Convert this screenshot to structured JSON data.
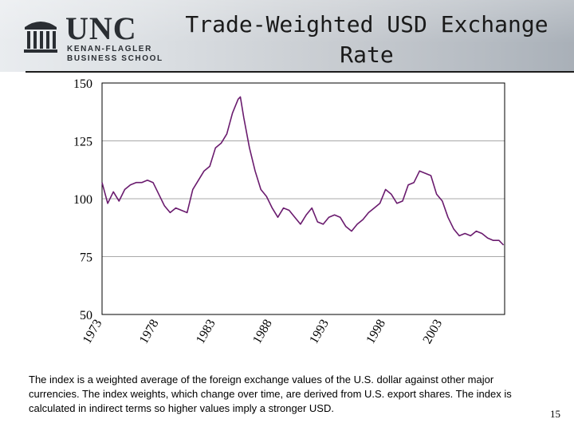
{
  "header": {
    "title": "Trade-Weighted USD Exchange Rate",
    "logo": {
      "wordmark": "UNC",
      "line1": "KENAN-FLAGLER",
      "line2": "BUSINESS SCHOOL",
      "icon": "old-well-icon"
    }
  },
  "chart_data": {
    "type": "line",
    "title": "",
    "xlabel": "",
    "ylabel": "",
    "ylim": [
      50,
      150
    ],
    "xlim": [
      1973,
      2008.5
    ],
    "yticks": [
      150,
      125,
      100,
      75,
      50
    ],
    "xtick_labels": [
      "1973",
      "1978",
      "1983",
      "1988",
      "1993",
      "1998",
      "2003"
    ],
    "grid": true,
    "legend": "none",
    "line_color": "#6a1b6e",
    "series": [
      {
        "x": [
          1973.0,
          1973.5,
          1974.0,
          1974.5,
          1975.0,
          1975.5,
          1976.0,
          1976.5,
          1977.0,
          1977.5,
          1978.0,
          1978.5,
          1979.0,
          1979.5,
          1980.0,
          1980.5,
          1981.0,
          1981.5,
          1982.0,
          1982.5,
          1983.0,
          1983.5,
          1984.0,
          1984.5,
          1985.0,
          1985.2,
          1985.5,
          1986.0,
          1986.5,
          1987.0,
          1987.5,
          1988.0,
          1988.5,
          1989.0,
          1989.5,
          1990.0,
          1990.5,
          1991.0,
          1991.5,
          1992.0,
          1992.5,
          1993.0,
          1993.5,
          1994.0,
          1994.5,
          1995.0,
          1995.5,
          1996.0,
          1996.5,
          1997.0,
          1997.5,
          1998.0,
          1998.5,
          1999.0,
          1999.5,
          2000.0,
          2000.5,
          2001.0,
          2001.5,
          2002.0,
          2002.5,
          2003.0,
          2003.5,
          2004.0,
          2004.5,
          2005.0,
          2005.5,
          2006.0,
          2006.5,
          2007.0,
          2007.5,
          2008.0,
          2008.4
        ],
        "values": [
          107,
          98,
          103,
          99,
          104,
          106,
          107,
          107,
          108,
          107,
          102,
          97,
          94,
          96,
          95,
          94,
          104,
          108,
          112,
          114,
          122,
          124,
          128,
          137,
          143,
          144,
          135,
          122,
          112,
          104,
          101,
          96,
          92,
          96,
          95,
          92,
          89,
          93,
          96,
          90,
          89,
          92,
          93,
          92,
          88,
          86,
          89,
          91,
          94,
          96,
          98,
          104,
          102,
          98,
          99,
          106,
          107,
          112,
          111,
          110,
          102,
          99,
          92,
          87,
          84,
          85,
          84,
          86,
          85,
          83,
          82,
          82,
          80
        ]
      }
    ]
  },
  "caption": "The index is a weighted average of the foreign exchange values of the U.S. dollar against other major currencies. The index weights, which change over time, are derived from U.S. export shares.  The index is calculated in indirect terms so higher values imply a stronger USD.",
  "page_number": "15"
}
